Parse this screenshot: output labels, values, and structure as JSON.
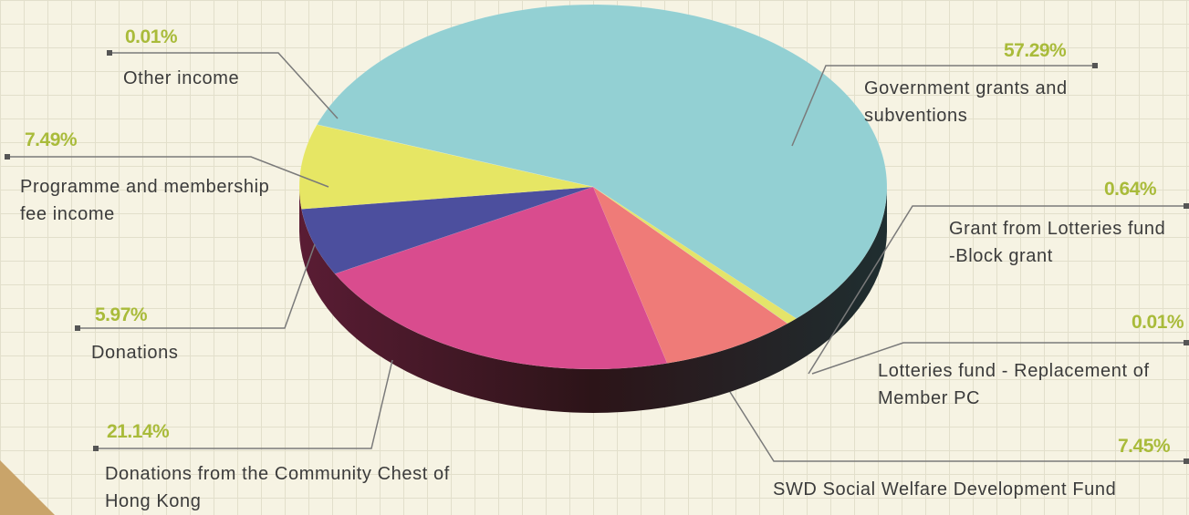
{
  "chart_data": {
    "type": "pie",
    "categories": [
      "Government grants and subventions",
      "Grant from Lotteries fund -Block grant",
      "Lotteries fund - Replacement of Member PC",
      "SWD Social Welfare Development Fund",
      "Donations from the Community Chest of Hong Kong",
      "Donations",
      "Programme and membership fee income",
      "Other income"
    ],
    "values": [
      57.29,
      0.64,
      0.01,
      7.45,
      21.14,
      5.97,
      7.49,
      0.01
    ],
    "value_labels": [
      "57.29%",
      "0.64%",
      "0.01%",
      "7.45%",
      "21.14%",
      "5.97%",
      "7.49%",
      "0.01%"
    ],
    "colors": [
      "#93d0d3",
      "#e4e46a",
      "#7fc4c8",
      "#ef7b78",
      "#d94c8e",
      "#4c4f9e",
      "#e6e664",
      "#8fd0d4"
    ]
  }
}
